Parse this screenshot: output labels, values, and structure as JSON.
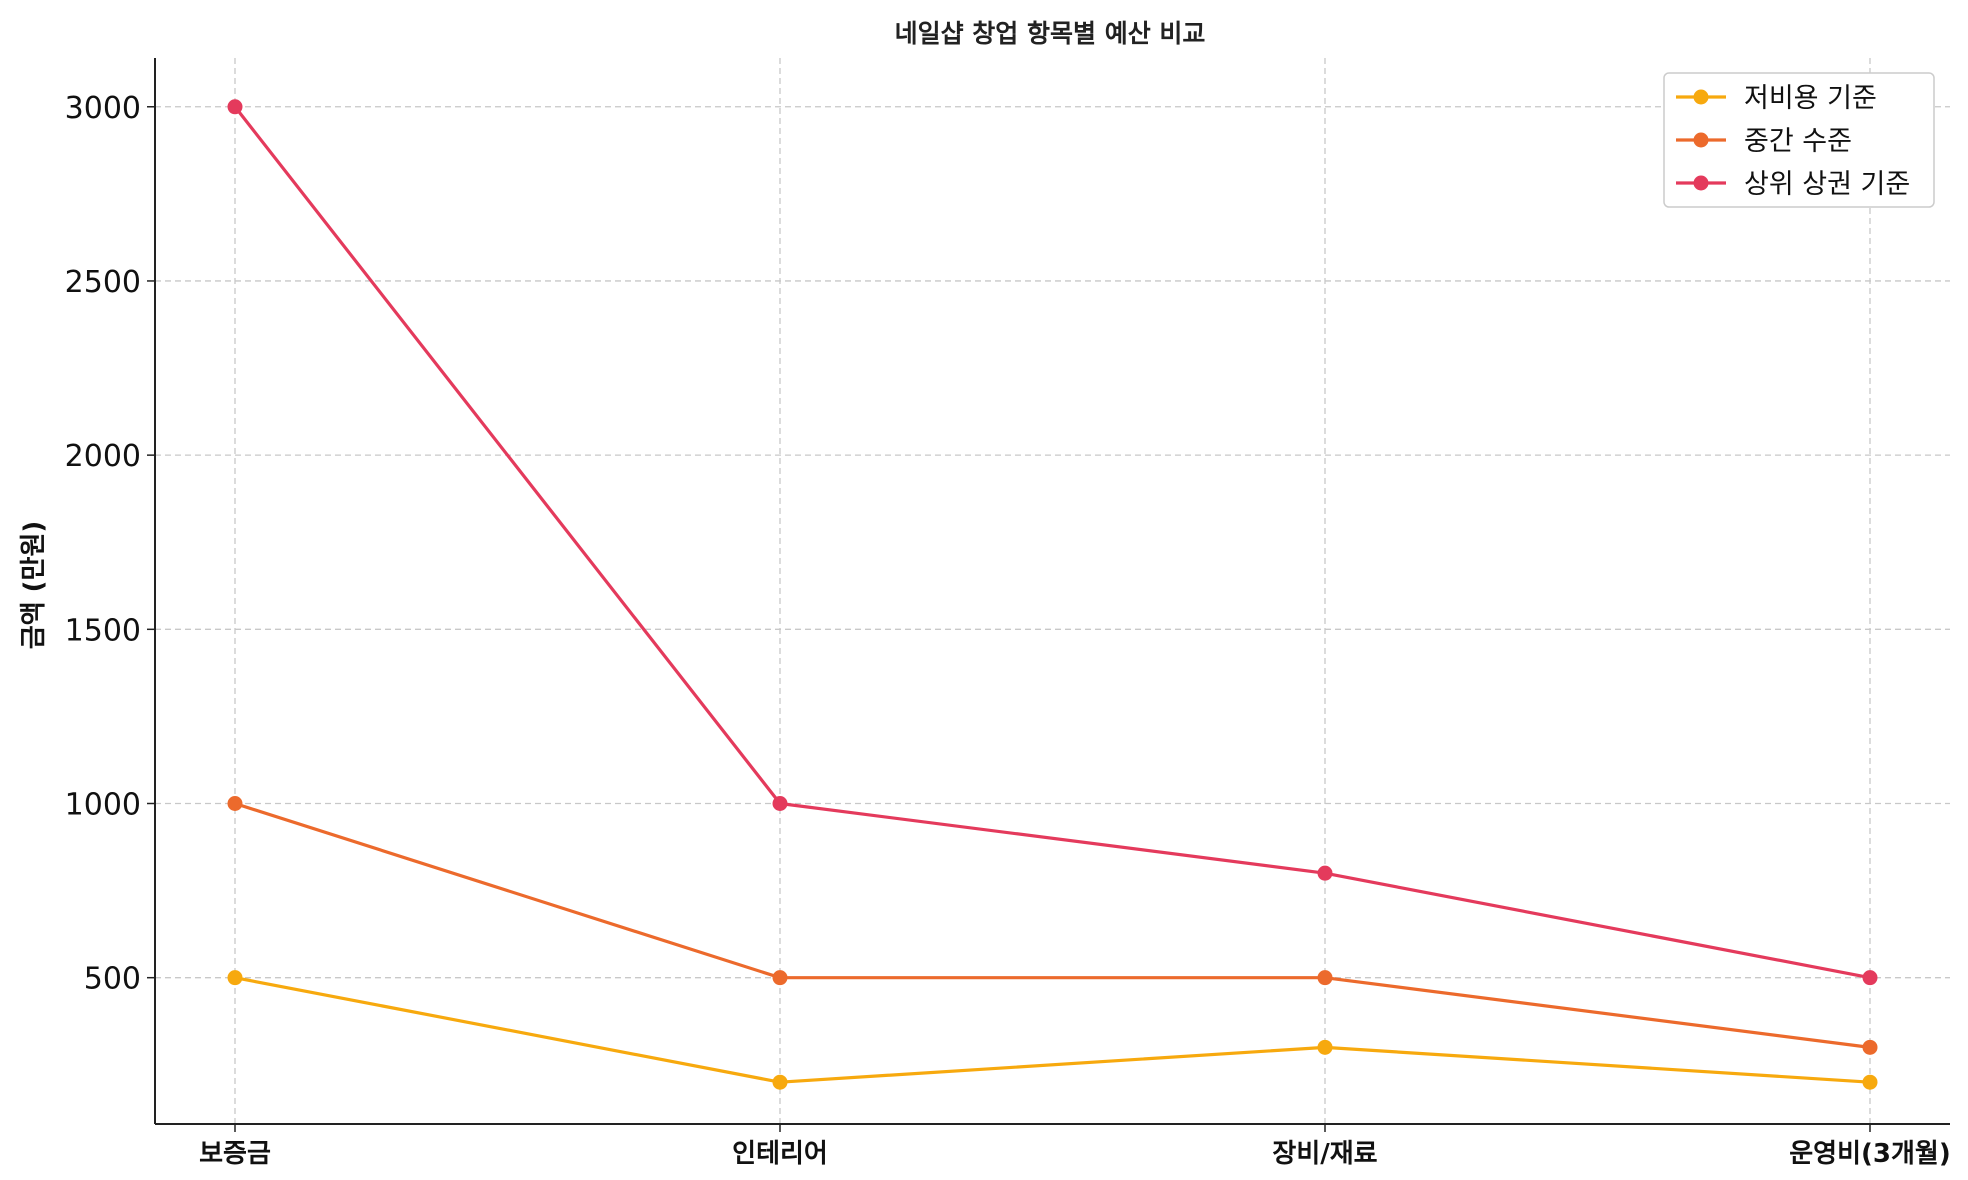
{
  "chart_data": {
    "type": "line",
    "title": "네일샵 창업 항목별 예산 비교",
    "xlabel": "",
    "ylabel": "금액 (만원)",
    "categories": [
      "보증금",
      "인테리어",
      "장비/재료",
      "운영비(3개월)"
    ],
    "ylim": [
      80,
      3140
    ],
    "yticks": [
      500,
      1000,
      1500,
      2000,
      2500,
      3000
    ],
    "grid": true,
    "legend_position": "top-right",
    "series": [
      {
        "name": "저비용 기준",
        "color": "#F7A90E",
        "values": [
          500,
          200,
          300,
          200
        ]
      },
      {
        "name": "중간 수준",
        "color": "#EC6A2C",
        "values": [
          1000,
          500,
          500,
          300
        ]
      },
      {
        "name": "상위 상권 기준",
        "color": "#E43A5C",
        "values": [
          3000,
          1000,
          800,
          500
        ]
      }
    ]
  }
}
